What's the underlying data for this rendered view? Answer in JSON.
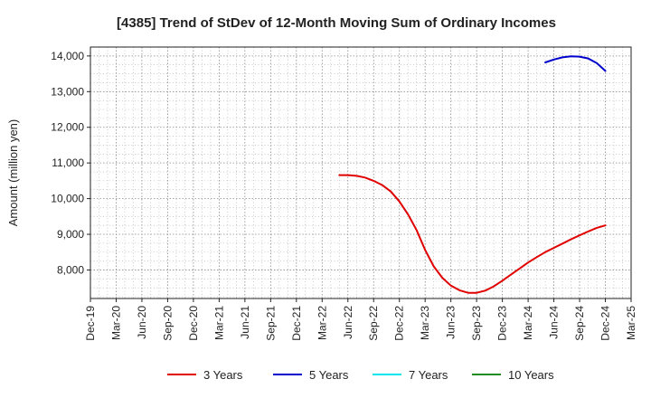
{
  "chart_data": {
    "type": "line",
    "title": "[4385]  Trend of StDev of 12-Month Moving Sum of Ordinary Incomes",
    "ylabel": "Amount (million yen)",
    "xlabel": "",
    "x_tick_labels": [
      "Dec-19",
      "Mar-20",
      "Jun-20",
      "Sep-20",
      "Dec-20",
      "Mar-21",
      "Jun-21",
      "Sep-21",
      "Dec-21",
      "Mar-22",
      "Jun-22",
      "Sep-22",
      "Dec-22",
      "Mar-23",
      "Jun-23",
      "Sep-23",
      "Dec-23",
      "Mar-24",
      "Jun-24",
      "Sep-24",
      "Dec-24",
      "Mar-25"
    ],
    "y_ticks": [
      8000,
      9000,
      10000,
      11000,
      12000,
      13000,
      14000
    ],
    "ylim": [
      7200,
      14250
    ],
    "xlim": [
      "2019-12",
      "2025-03"
    ],
    "grid": true,
    "legend_position": "bottom",
    "series": [
      {
        "name": "3 Years",
        "color": "#e00000",
        "points": [
          {
            "x": "2022-05",
            "y": 10660
          },
          {
            "x": "2022-06",
            "y": 10660
          },
          {
            "x": "2022-07",
            "y": 10640
          },
          {
            "x": "2022-08",
            "y": 10590
          },
          {
            "x": "2022-09",
            "y": 10500
          },
          {
            "x": "2022-10",
            "y": 10380
          },
          {
            "x": "2022-11",
            "y": 10200
          },
          {
            "x": "2022-12",
            "y": 9920
          },
          {
            "x": "2023-01",
            "y": 9560
          },
          {
            "x": "2023-02",
            "y": 9120
          },
          {
            "x": "2023-03",
            "y": 8560
          },
          {
            "x": "2023-04",
            "y": 8100
          },
          {
            "x": "2023-05",
            "y": 7780
          },
          {
            "x": "2023-06",
            "y": 7560
          },
          {
            "x": "2023-07",
            "y": 7430
          },
          {
            "x": "2023-08",
            "y": 7360
          },
          {
            "x": "2023-09",
            "y": 7360
          },
          {
            "x": "2023-10",
            "y": 7420
          },
          {
            "x": "2023-11",
            "y": 7540
          },
          {
            "x": "2023-12",
            "y": 7700
          },
          {
            "x": "2024-01",
            "y": 7870
          },
          {
            "x": "2024-02",
            "y": 8040
          },
          {
            "x": "2024-03",
            "y": 8210
          },
          {
            "x": "2024-04",
            "y": 8360
          },
          {
            "x": "2024-05",
            "y": 8500
          },
          {
            "x": "2024-06",
            "y": 8620
          },
          {
            "x": "2024-07",
            "y": 8740
          },
          {
            "x": "2024-08",
            "y": 8860
          },
          {
            "x": "2024-09",
            "y": 8970
          },
          {
            "x": "2024-10",
            "y": 9080
          },
          {
            "x": "2024-11",
            "y": 9180
          },
          {
            "x": "2024-12",
            "y": 9250
          }
        ]
      },
      {
        "name": "5 Years",
        "color": "#0000cc",
        "points": [
          {
            "x": "2024-05",
            "y": 13820
          },
          {
            "x": "2024-06",
            "y": 13900
          },
          {
            "x": "2024-07",
            "y": 13960
          },
          {
            "x": "2024-08",
            "y": 13990
          },
          {
            "x": "2024-09",
            "y": 13980
          },
          {
            "x": "2024-10",
            "y": 13930
          },
          {
            "x": "2024-11",
            "y": 13800
          },
          {
            "x": "2024-12",
            "y": 13580
          }
        ]
      },
      {
        "name": "7 Years",
        "color": "#00e5ee",
        "points": []
      },
      {
        "name": "10 Years",
        "color": "#228b22",
        "points": []
      }
    ]
  }
}
